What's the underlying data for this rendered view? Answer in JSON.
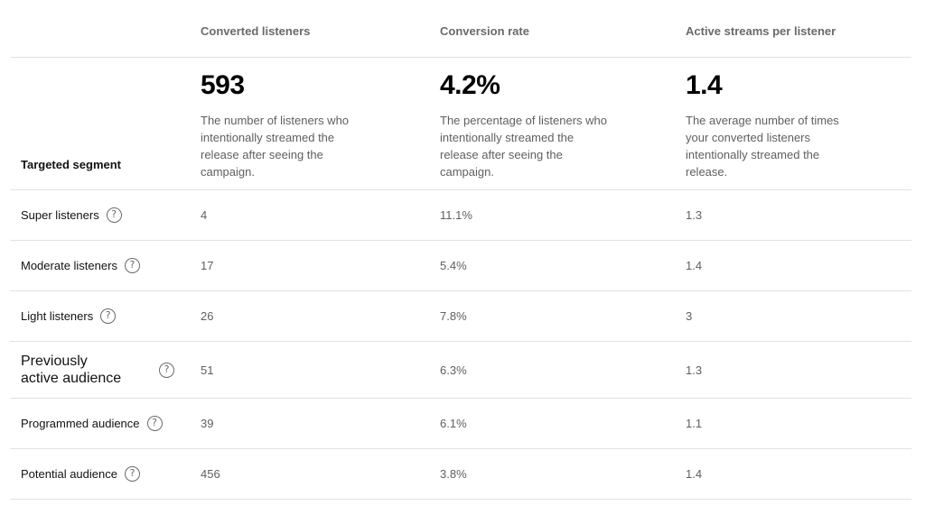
{
  "columns": {
    "converted": "Converted listeners",
    "rate": "Conversion rate",
    "streams": "Active streams per listener"
  },
  "summary": {
    "segment_header": "Targeted segment",
    "converted_value": "593",
    "converted_desc": "The number of listeners who intentionally streamed the release after seeing the campaign.",
    "rate_value": "4.2%",
    "rate_desc": "The percentage of listeners who intentionally streamed the release after seeing the campaign.",
    "streams_value": "1.4",
    "streams_desc": "The average number of times your converted listeners intentionally streamed the release."
  },
  "rows": [
    {
      "segment": "Super listeners",
      "converted": "4",
      "rate": "11.1%",
      "streams": "1.3"
    },
    {
      "segment": "Moderate listeners",
      "converted": "17",
      "rate": "5.4%",
      "streams": "1.4"
    },
    {
      "segment": "Light listeners",
      "converted": "26",
      "rate": "7.8%",
      "streams": "3"
    },
    {
      "segment": "Previously active audience",
      "converted": "51",
      "rate": "6.3%",
      "streams": "1.3"
    },
    {
      "segment": "Programmed audience",
      "converted": "39",
      "rate": "6.1%",
      "streams": "1.1"
    },
    {
      "segment": "Potential audience",
      "converted": "456",
      "rate": "3.8%",
      "streams": "1.4"
    }
  ],
  "icons": {
    "help": "question-circle-icon"
  }
}
